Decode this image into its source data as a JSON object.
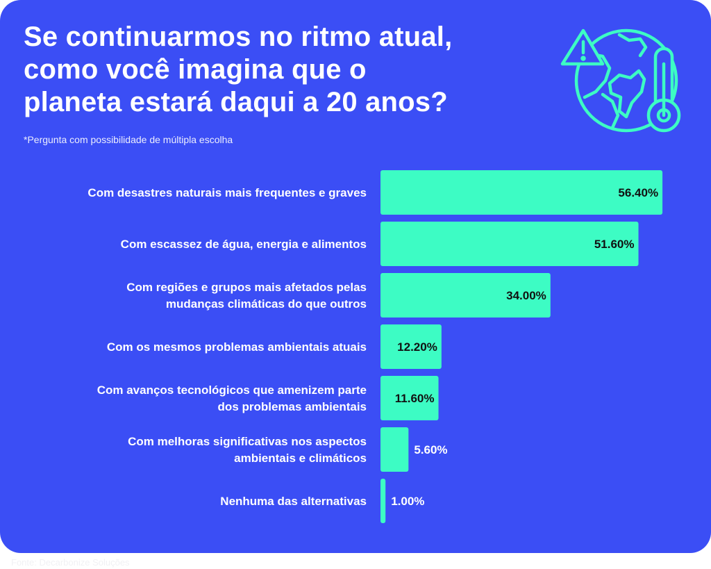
{
  "header": {
    "title_lines": [
      "Se continuarmos no ritmo atual,",
      "como você imagina que o",
      "planeta estará daqui a 20 anos?"
    ],
    "subtitle": "*Pergunta com possibilidade de múltipla escolha"
  },
  "icon": "globe-warning-thermometer-icon",
  "footer": {
    "source": "Fonte: Decarbonize Soluções"
  },
  "colors": {
    "background": "#3b4ef5",
    "bar": "#3dfcc4",
    "text": "#ffffff",
    "value_dark": "#111111"
  },
  "chart_data": {
    "type": "bar",
    "orientation": "horizontal",
    "categories": [
      [
        "Com desastres naturais mais frequentes e graves"
      ],
      [
        "Com escassez de água, energia e alimentos"
      ],
      [
        "Com regiões e grupos mais afetados pelas",
        "mudanças climáticas do que outros"
      ],
      [
        "Com os mesmos problemas ambientais atuais"
      ],
      [
        "Com avanços tecnológicos que amenizem parte",
        "dos problemas ambientais"
      ],
      [
        "Com melhoras significativas nos aspectos",
        "ambientais e climáticos"
      ],
      [
        "Nenhuma das alternativas"
      ]
    ],
    "values": [
      56.4,
      51.6,
      34.0,
      12.2,
      11.6,
      5.6,
      1.0
    ],
    "value_labels": [
      "56.40%",
      "51.60%",
      "34.00%",
      "12.20%",
      "11.60%",
      "5.60%",
      "1.00%"
    ],
    "unit": "%",
    "grid": false,
    "legend": "none"
  }
}
